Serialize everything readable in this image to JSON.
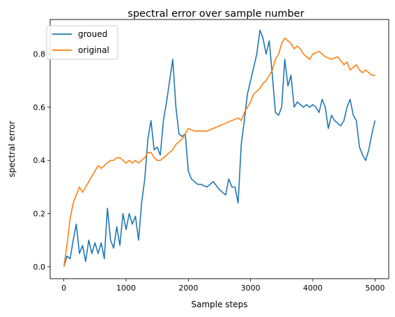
{
  "chart_data": {
    "type": "line",
    "title": "spectral error over sample number",
    "xlabel": "Sample steps",
    "ylabel": "spectral error",
    "xlim": [
      -220,
      5220
    ],
    "ylim": [
      -0.045,
      0.93
    ],
    "xticks": [
      0,
      1000,
      2000,
      3000,
      4000,
      5000
    ],
    "xtick_labels": [
      "0",
      "1000",
      "2000",
      "3000",
      "4000",
      "5000"
    ],
    "yticks": [
      0.0,
      0.2,
      0.4,
      0.6,
      0.8
    ],
    "ytick_labels": [
      "0.0",
      "0.2",
      "0.4",
      "0.6",
      "0.8"
    ],
    "grid": false,
    "legend_position": "upper-left",
    "series": [
      {
        "name": "groued",
        "color": "#1f77b4",
        "x": [
          0,
          50,
          100,
          150,
          200,
          250,
          300,
          350,
          400,
          450,
          500,
          550,
          600,
          650,
          700,
          750,
          800,
          850,
          900,
          950,
          1000,
          1050,
          1100,
          1150,
          1200,
          1250,
          1300,
          1350,
          1400,
          1450,
          1500,
          1550,
          1600,
          1650,
          1700,
          1750,
          1800,
          1850,
          1900,
          1950,
          2000,
          2050,
          2100,
          2150,
          2200,
          2300,
          2400,
          2500,
          2600,
          2650,
          2700,
          2750,
          2800,
          2850,
          2900,
          2950,
          3000,
          3050,
          3100,
          3150,
          3200,
          3250,
          3300,
          3350,
          3400,
          3450,
          3500,
          3550,
          3600,
          3650,
          3700,
          3750,
          3800,
          3850,
          3900,
          3950,
          4000,
          4050,
          4100,
          4150,
          4200,
          4250,
          4300,
          4350,
          4400,
          4450,
          4500,
          4550,
          4600,
          4650,
          4700,
          4750,
          4800,
          4850,
          4900,
          4950,
          5000
        ],
        "values": [
          0.0,
          0.04,
          0.03,
          0.1,
          0.16,
          0.05,
          0.08,
          0.02,
          0.1,
          0.05,
          0.09,
          0.05,
          0.09,
          0.03,
          0.22,
          0.1,
          0.07,
          0.15,
          0.08,
          0.2,
          0.14,
          0.2,
          0.16,
          0.19,
          0.1,
          0.24,
          0.33,
          0.48,
          0.55,
          0.44,
          0.45,
          0.42,
          0.55,
          0.62,
          0.7,
          0.78,
          0.6,
          0.5,
          0.49,
          0.5,
          0.36,
          0.33,
          0.32,
          0.31,
          0.31,
          0.3,
          0.32,
          0.29,
          0.27,
          0.33,
          0.3,
          0.3,
          0.24,
          0.46,
          0.55,
          0.65,
          0.7,
          0.75,
          0.8,
          0.89,
          0.86,
          0.8,
          0.85,
          0.72,
          0.58,
          0.57,
          0.6,
          0.78,
          0.68,
          0.72,
          0.6,
          0.62,
          0.61,
          0.6,
          0.61,
          0.6,
          0.61,
          0.6,
          0.58,
          0.63,
          0.6,
          0.52,
          0.57,
          0.55,
          0.54,
          0.53,
          0.55,
          0.6,
          0.63,
          0.57,
          0.55,
          0.45,
          0.42,
          0.4,
          0.44,
          0.5,
          0.55
        ]
      },
      {
        "name": "original",
        "color": "#ff7f0e",
        "x": [
          0,
          50,
          100,
          150,
          200,
          250,
          300,
          350,
          400,
          450,
          500,
          550,
          600,
          650,
          700,
          750,
          800,
          850,
          900,
          950,
          1000,
          1050,
          1100,
          1150,
          1200,
          1250,
          1300,
          1350,
          1400,
          1450,
          1500,
          1550,
          1600,
          1650,
          1700,
          1750,
          1800,
          1850,
          1900,
          1950,
          2000,
          2100,
          2200,
          2300,
          2400,
          2500,
          2600,
          2700,
          2800,
          2850,
          2900,
          2950,
          3000,
          3050,
          3100,
          3150,
          3200,
          3250,
          3300,
          3350,
          3400,
          3450,
          3500,
          3550,
          3600,
          3650,
          3700,
          3750,
          3800,
          3850,
          3900,
          3950,
          4000,
          4100,
          4200,
          4300,
          4400,
          4500,
          4550,
          4600,
          4650,
          4700,
          4750,
          4800,
          4850,
          4900,
          4950,
          5000
        ],
        "values": [
          0.0,
          0.08,
          0.18,
          0.24,
          0.27,
          0.3,
          0.28,
          0.3,
          0.32,
          0.34,
          0.36,
          0.38,
          0.37,
          0.38,
          0.39,
          0.4,
          0.4,
          0.41,
          0.41,
          0.4,
          0.39,
          0.4,
          0.39,
          0.4,
          0.39,
          0.4,
          0.41,
          0.43,
          0.43,
          0.41,
          0.4,
          0.4,
          0.41,
          0.42,
          0.43,
          0.44,
          0.46,
          0.47,
          0.48,
          0.5,
          0.52,
          0.51,
          0.51,
          0.51,
          0.52,
          0.53,
          0.54,
          0.55,
          0.56,
          0.55,
          0.58,
          0.6,
          0.62,
          0.65,
          0.66,
          0.67,
          0.69,
          0.7,
          0.72,
          0.74,
          0.78,
          0.8,
          0.84,
          0.86,
          0.85,
          0.84,
          0.82,
          0.83,
          0.82,
          0.8,
          0.79,
          0.78,
          0.8,
          0.81,
          0.79,
          0.78,
          0.79,
          0.76,
          0.77,
          0.74,
          0.75,
          0.76,
          0.74,
          0.73,
          0.74,
          0.73,
          0.72,
          0.72
        ]
      }
    ]
  }
}
